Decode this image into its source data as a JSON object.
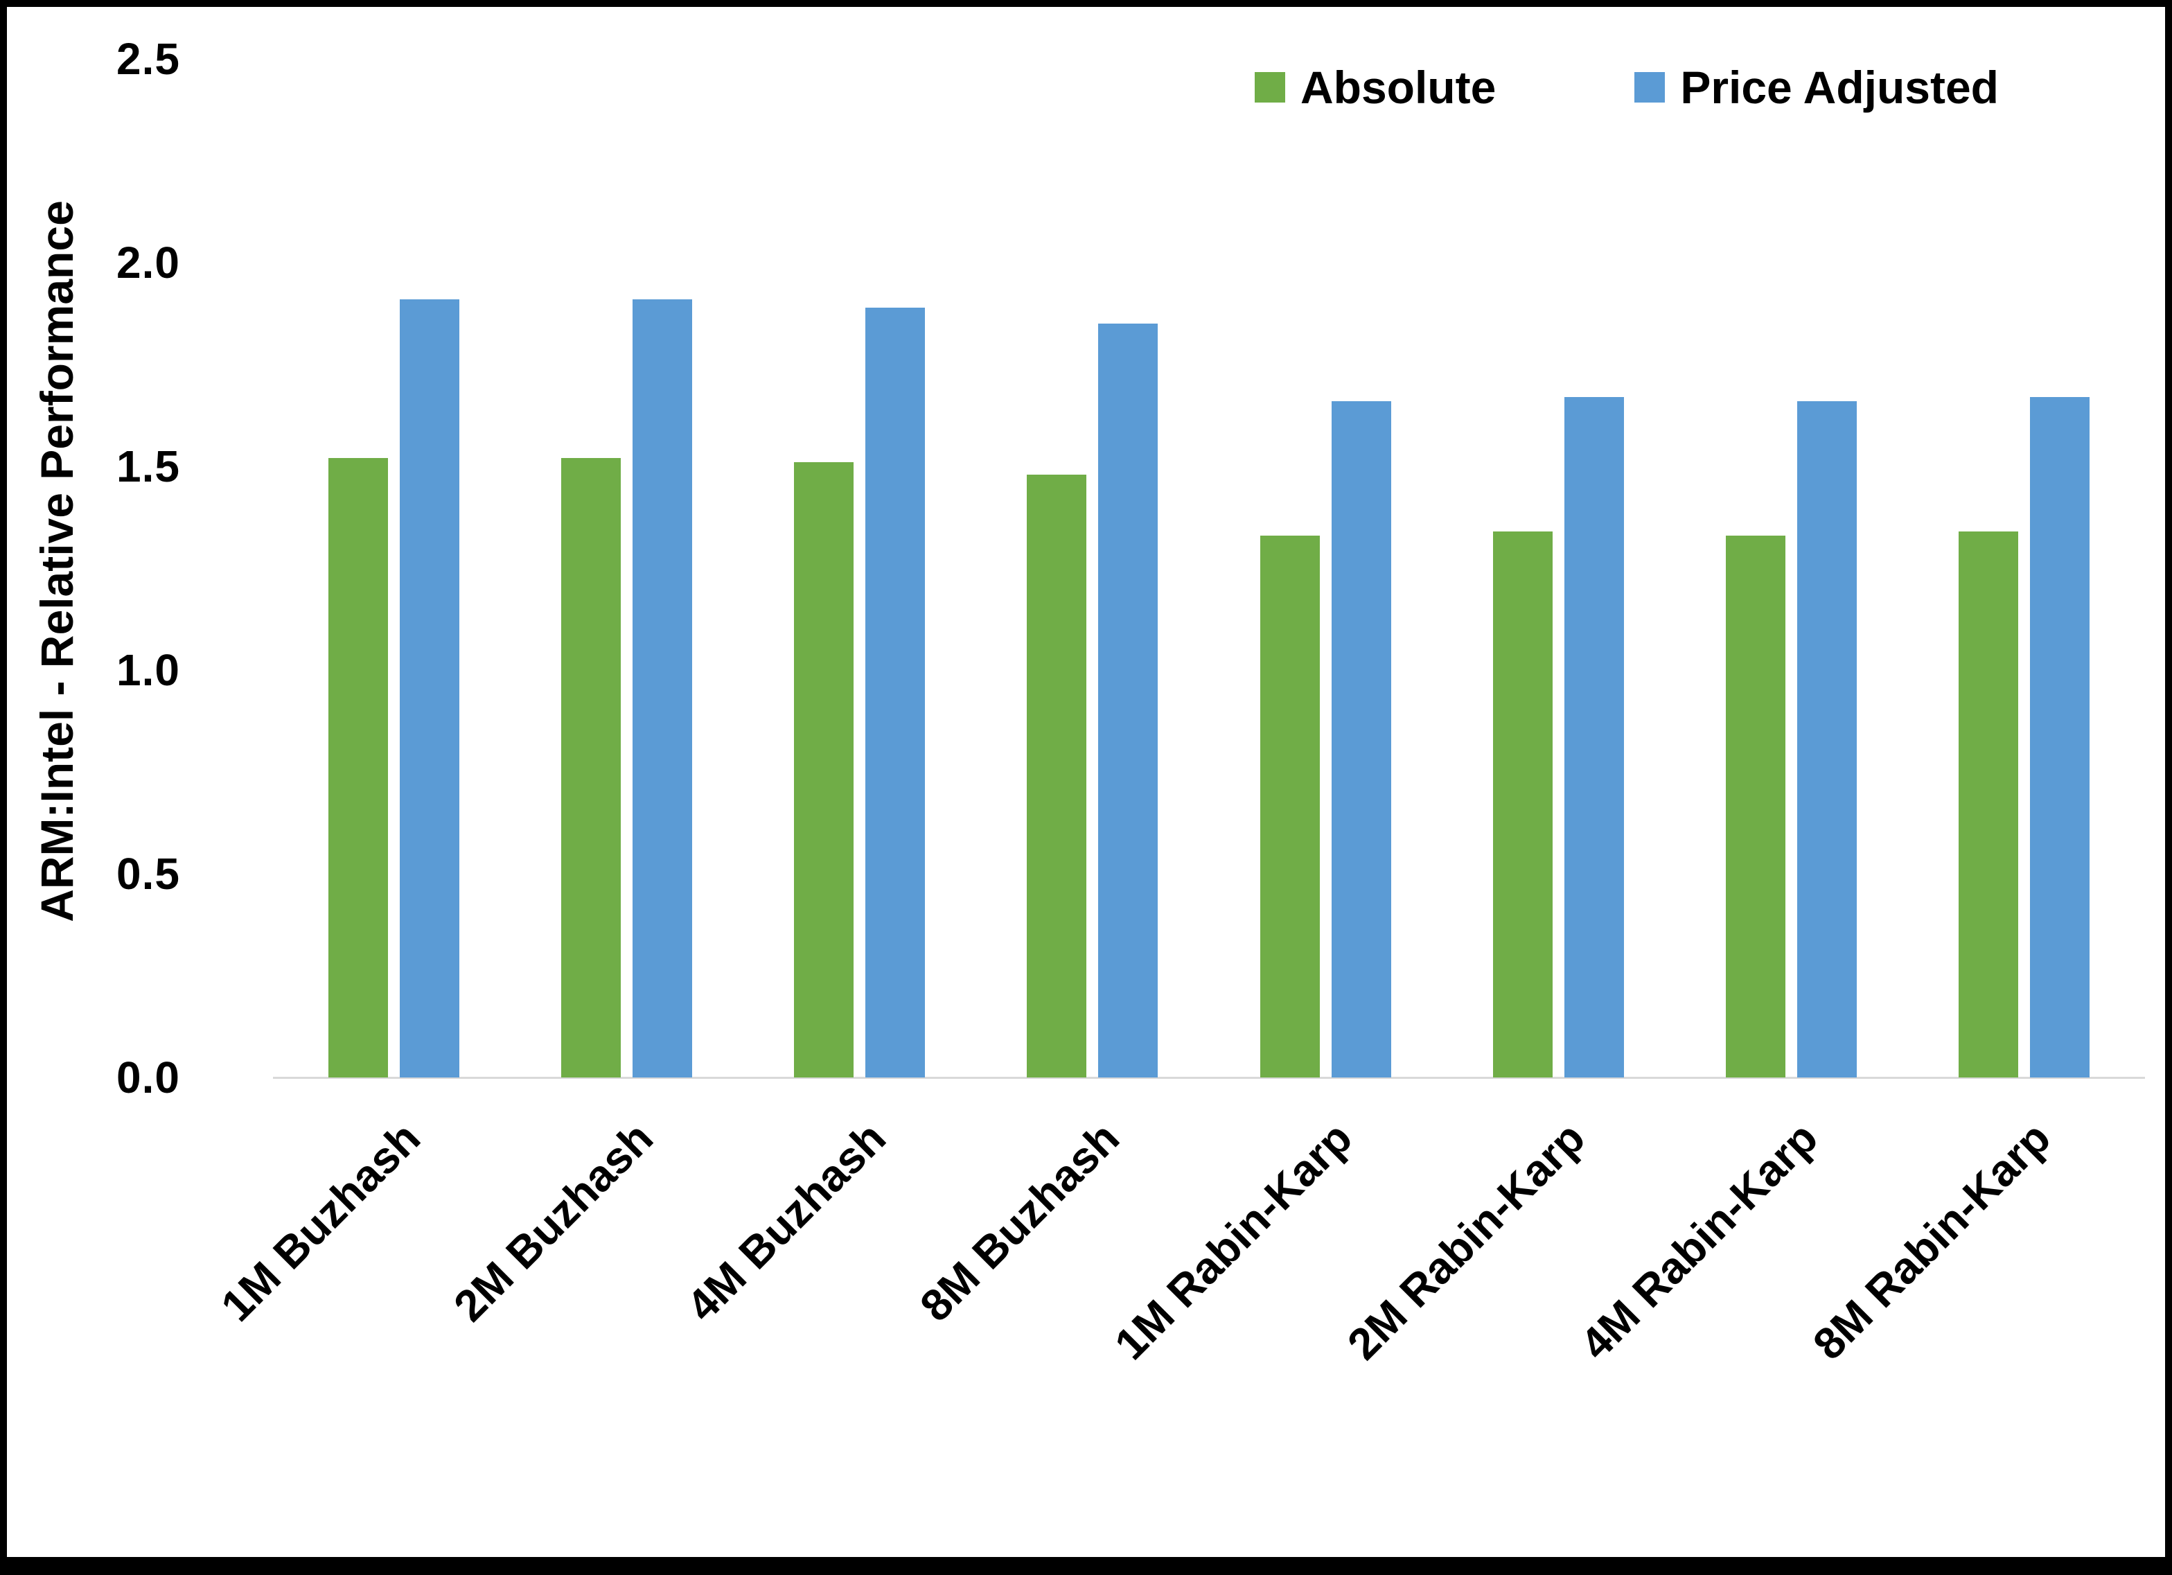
{
  "chart_data": {
    "type": "bar",
    "title": "",
    "xlabel": "",
    "ylabel": "ARM:Intel - Relative Performance",
    "categories": [
      "1M Buzhash",
      "2M Buzhash",
      "4M Buzhash",
      "8M Buzhash",
      "1M Rabin-Karp",
      "2M Rabin-Karp",
      "4M Rabin-Karp",
      "8M Rabin-Karp"
    ],
    "series": [
      {
        "name": "Absolute",
        "color": "#70AD47",
        "values": [
          1.52,
          1.52,
          1.51,
          1.48,
          1.33,
          1.34,
          1.33,
          1.34
        ]
      },
      {
        "name": "Price Adjusted",
        "color": "#5B9BD5",
        "values": [
          1.91,
          1.91,
          1.89,
          1.85,
          1.66,
          1.67,
          1.66,
          1.67
        ]
      }
    ],
    "ylim": [
      0,
      2.5
    ],
    "y_ticks": [
      "0.0",
      "0.5",
      "1.0",
      "1.5",
      "2.0",
      "2.5"
    ],
    "grid": false,
    "legend_position": "top-right"
  }
}
